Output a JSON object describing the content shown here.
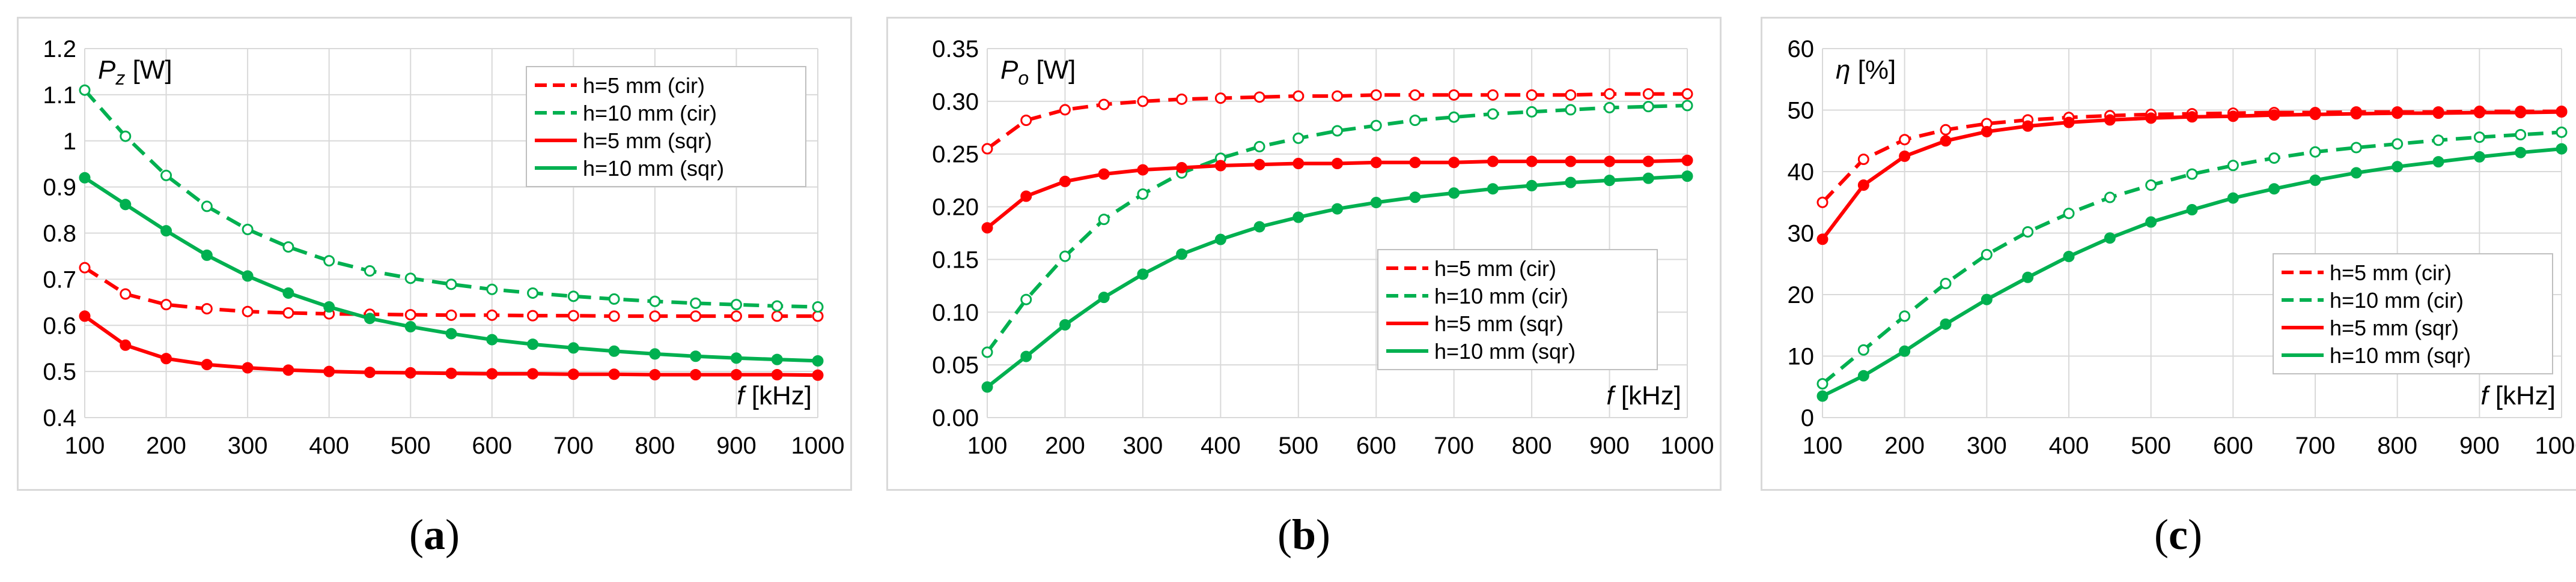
{
  "chart_data": [
    {
      "id": "a",
      "type": "line",
      "caption_open": "(",
      "caption_letter": "a",
      "caption_close": ")",
      "ylabel_symbol": "P",
      "ylabel_sub": "z",
      "ylabel_unit": " [W]",
      "xlabel_symbol": "f",
      "xlabel_unit": " [kHz]",
      "x": [
        100,
        150,
        200,
        250,
        300,
        350,
        400,
        450,
        500,
        550,
        600,
        650,
        700,
        750,
        800,
        850,
        900,
        950,
        1000
      ],
      "xticks": [
        100,
        200,
        300,
        400,
        500,
        600,
        700,
        800,
        900,
        1000
      ],
      "ylim": [
        0.4,
        1.2
      ],
      "yticks": [
        0.4,
        0.5,
        0.6,
        0.7,
        0.8,
        0.9,
        1.0,
        1.1,
        1.2
      ],
      "ytick_labels": [
        "0.4",
        "0.5",
        "0.6",
        "0.7",
        "0.8",
        "0.9",
        "1",
        "1.1",
        "1.2"
      ],
      "legend_position": "top-right",
      "series": [
        {
          "name": "h=5 mm (cir)",
          "color": "#ff0000",
          "dash": true,
          "marker": "open",
          "values": [
            0.725,
            0.668,
            0.645,
            0.636,
            0.63,
            0.627,
            0.625,
            0.624,
            0.623,
            0.622,
            0.622,
            0.621,
            0.621,
            0.62,
            0.62,
            0.62,
            0.62,
            0.62,
            0.62
          ]
        },
        {
          "name": "h=10 mm (cir)",
          "color": "#00b050",
          "dash": true,
          "marker": "open",
          "values": [
            1.11,
            1.01,
            0.925,
            0.858,
            0.808,
            0.77,
            0.74,
            0.718,
            0.702,
            0.689,
            0.678,
            0.67,
            0.663,
            0.657,
            0.652,
            0.648,
            0.645,
            0.642,
            0.64
          ]
        },
        {
          "name": "h=5 mm (sqr)",
          "color": "#ff0000",
          "dash": false,
          "marker": "filled",
          "values": [
            0.62,
            0.557,
            0.528,
            0.515,
            0.508,
            0.503,
            0.5,
            0.498,
            0.497,
            0.496,
            0.495,
            0.495,
            0.494,
            0.494,
            0.493,
            0.493,
            0.493,
            0.493,
            0.492
          ]
        },
        {
          "name": "h=10 mm (sqr)",
          "color": "#00b050",
          "dash": false,
          "marker": "filled",
          "values": [
            0.92,
            0.862,
            0.805,
            0.752,
            0.707,
            0.67,
            0.64,
            0.615,
            0.597,
            0.582,
            0.569,
            0.559,
            0.551,
            0.544,
            0.538,
            0.533,
            0.529,
            0.526,
            0.523
          ]
        }
      ]
    },
    {
      "id": "b",
      "type": "line",
      "caption_open": "(",
      "caption_letter": "b",
      "caption_close": ")",
      "ylabel_symbol": "P",
      "ylabel_sub": "o",
      "ylabel_unit": " [W]",
      "xlabel_symbol": "f",
      "xlabel_unit": " [kHz]",
      "x": [
        100,
        150,
        200,
        250,
        300,
        350,
        400,
        450,
        500,
        550,
        600,
        650,
        700,
        750,
        800,
        850,
        900,
        950,
        1000
      ],
      "xticks": [
        100,
        200,
        300,
        400,
        500,
        600,
        700,
        800,
        900,
        1000
      ],
      "ylim": [
        0,
        0.35
      ],
      "yticks": [
        0,
        0.05,
        0.1,
        0.15,
        0.2,
        0.25,
        0.3,
        0.35
      ],
      "ytick_labels": [
        "0.00",
        "0.05",
        "0.10",
        "0.15",
        "0.20",
        "0.25",
        "0.30",
        "0.35"
      ],
      "legend_position": "center-right",
      "series": [
        {
          "name": "h=5 mm (cir)",
          "color": "#ff0000",
          "dash": true,
          "marker": "open",
          "values": [
            0.255,
            0.282,
            0.292,
            0.297,
            0.3,
            0.302,
            0.303,
            0.304,
            0.305,
            0.305,
            0.306,
            0.306,
            0.306,
            0.306,
            0.306,
            0.306,
            0.307,
            0.307,
            0.307
          ]
        },
        {
          "name": "h=10 mm (cir)",
          "color": "#00b050",
          "dash": true,
          "marker": "open",
          "values": [
            0.062,
            0.112,
            0.153,
            0.188,
            0.212,
            0.232,
            0.246,
            0.257,
            0.265,
            0.272,
            0.277,
            0.282,
            0.285,
            0.288,
            0.29,
            0.292,
            0.294,
            0.295,
            0.296
          ]
        },
        {
          "name": "h=5 mm (sqr)",
          "color": "#ff0000",
          "dash": false,
          "marker": "filled",
          "values": [
            0.18,
            0.21,
            0.224,
            0.231,
            0.235,
            0.237,
            0.239,
            0.24,
            0.241,
            0.241,
            0.242,
            0.242,
            0.242,
            0.243,
            0.243,
            0.243,
            0.243,
            0.243,
            0.244
          ]
        },
        {
          "name": "h=10 mm (sqr)",
          "color": "#00b050",
          "dash": false,
          "marker": "filled",
          "values": [
            0.029,
            0.058,
            0.088,
            0.114,
            0.136,
            0.155,
            0.169,
            0.181,
            0.19,
            0.198,
            0.204,
            0.209,
            0.213,
            0.217,
            0.22,
            0.223,
            0.225,
            0.227,
            0.229
          ]
        }
      ]
    },
    {
      "id": "c",
      "type": "line",
      "caption_open": "(",
      "caption_letter": "c",
      "caption_close": ")",
      "ylabel_symbol": "η",
      "ylabel_sub": "",
      "ylabel_unit": " [%]",
      "xlabel_symbol": "f",
      "xlabel_unit": " [kHz]",
      "x": [
        100,
        150,
        200,
        250,
        300,
        350,
        400,
        450,
        500,
        550,
        600,
        650,
        700,
        750,
        800,
        850,
        900,
        950,
        1000
      ],
      "xticks": [
        100,
        200,
        300,
        400,
        500,
        600,
        700,
        800,
        900,
        1000
      ],
      "ylim": [
        0,
        60
      ],
      "yticks": [
        0,
        10,
        20,
        30,
        40,
        50,
        60
      ],
      "ytick_labels": [
        "0",
        "10",
        "20",
        "30",
        "40",
        "50",
        "60"
      ],
      "legend_position": "center-right",
      "series": [
        {
          "name": "h=5 mm (cir)",
          "color": "#ff0000",
          "dash": true,
          "marker": "open",
          "values": [
            35.0,
            42.0,
            45.2,
            46.8,
            47.8,
            48.4,
            48.8,
            49.1,
            49.3,
            49.4,
            49.5,
            49.6,
            49.6,
            49.7,
            49.7,
            49.7,
            49.8,
            49.8,
            49.8
          ]
        },
        {
          "name": "h=10 mm (cir)",
          "color": "#00b050",
          "dash": true,
          "marker": "open",
          "values": [
            5.5,
            11.0,
            16.5,
            21.8,
            26.5,
            30.2,
            33.2,
            35.8,
            37.8,
            39.6,
            41.0,
            42.2,
            43.2,
            43.9,
            44.5,
            45.1,
            45.6,
            46.0,
            46.4
          ]
        },
        {
          "name": "h=5 mm (sqr)",
          "color": "#ff0000",
          "dash": false,
          "marker": "filled",
          "values": [
            29.0,
            37.8,
            42.5,
            45.0,
            46.5,
            47.4,
            48.0,
            48.4,
            48.7,
            48.9,
            49.0,
            49.2,
            49.3,
            49.4,
            49.5,
            49.5,
            49.6,
            49.6,
            49.7
          ]
        },
        {
          "name": "h=10 mm (sqr)",
          "color": "#00b050",
          "dash": false,
          "marker": "filled",
          "values": [
            3.5,
            6.8,
            10.8,
            15.2,
            19.2,
            22.8,
            26.2,
            29.2,
            31.8,
            33.8,
            35.7,
            37.2,
            38.6,
            39.8,
            40.8,
            41.6,
            42.4,
            43.1,
            43.7
          ]
        }
      ]
    }
  ]
}
